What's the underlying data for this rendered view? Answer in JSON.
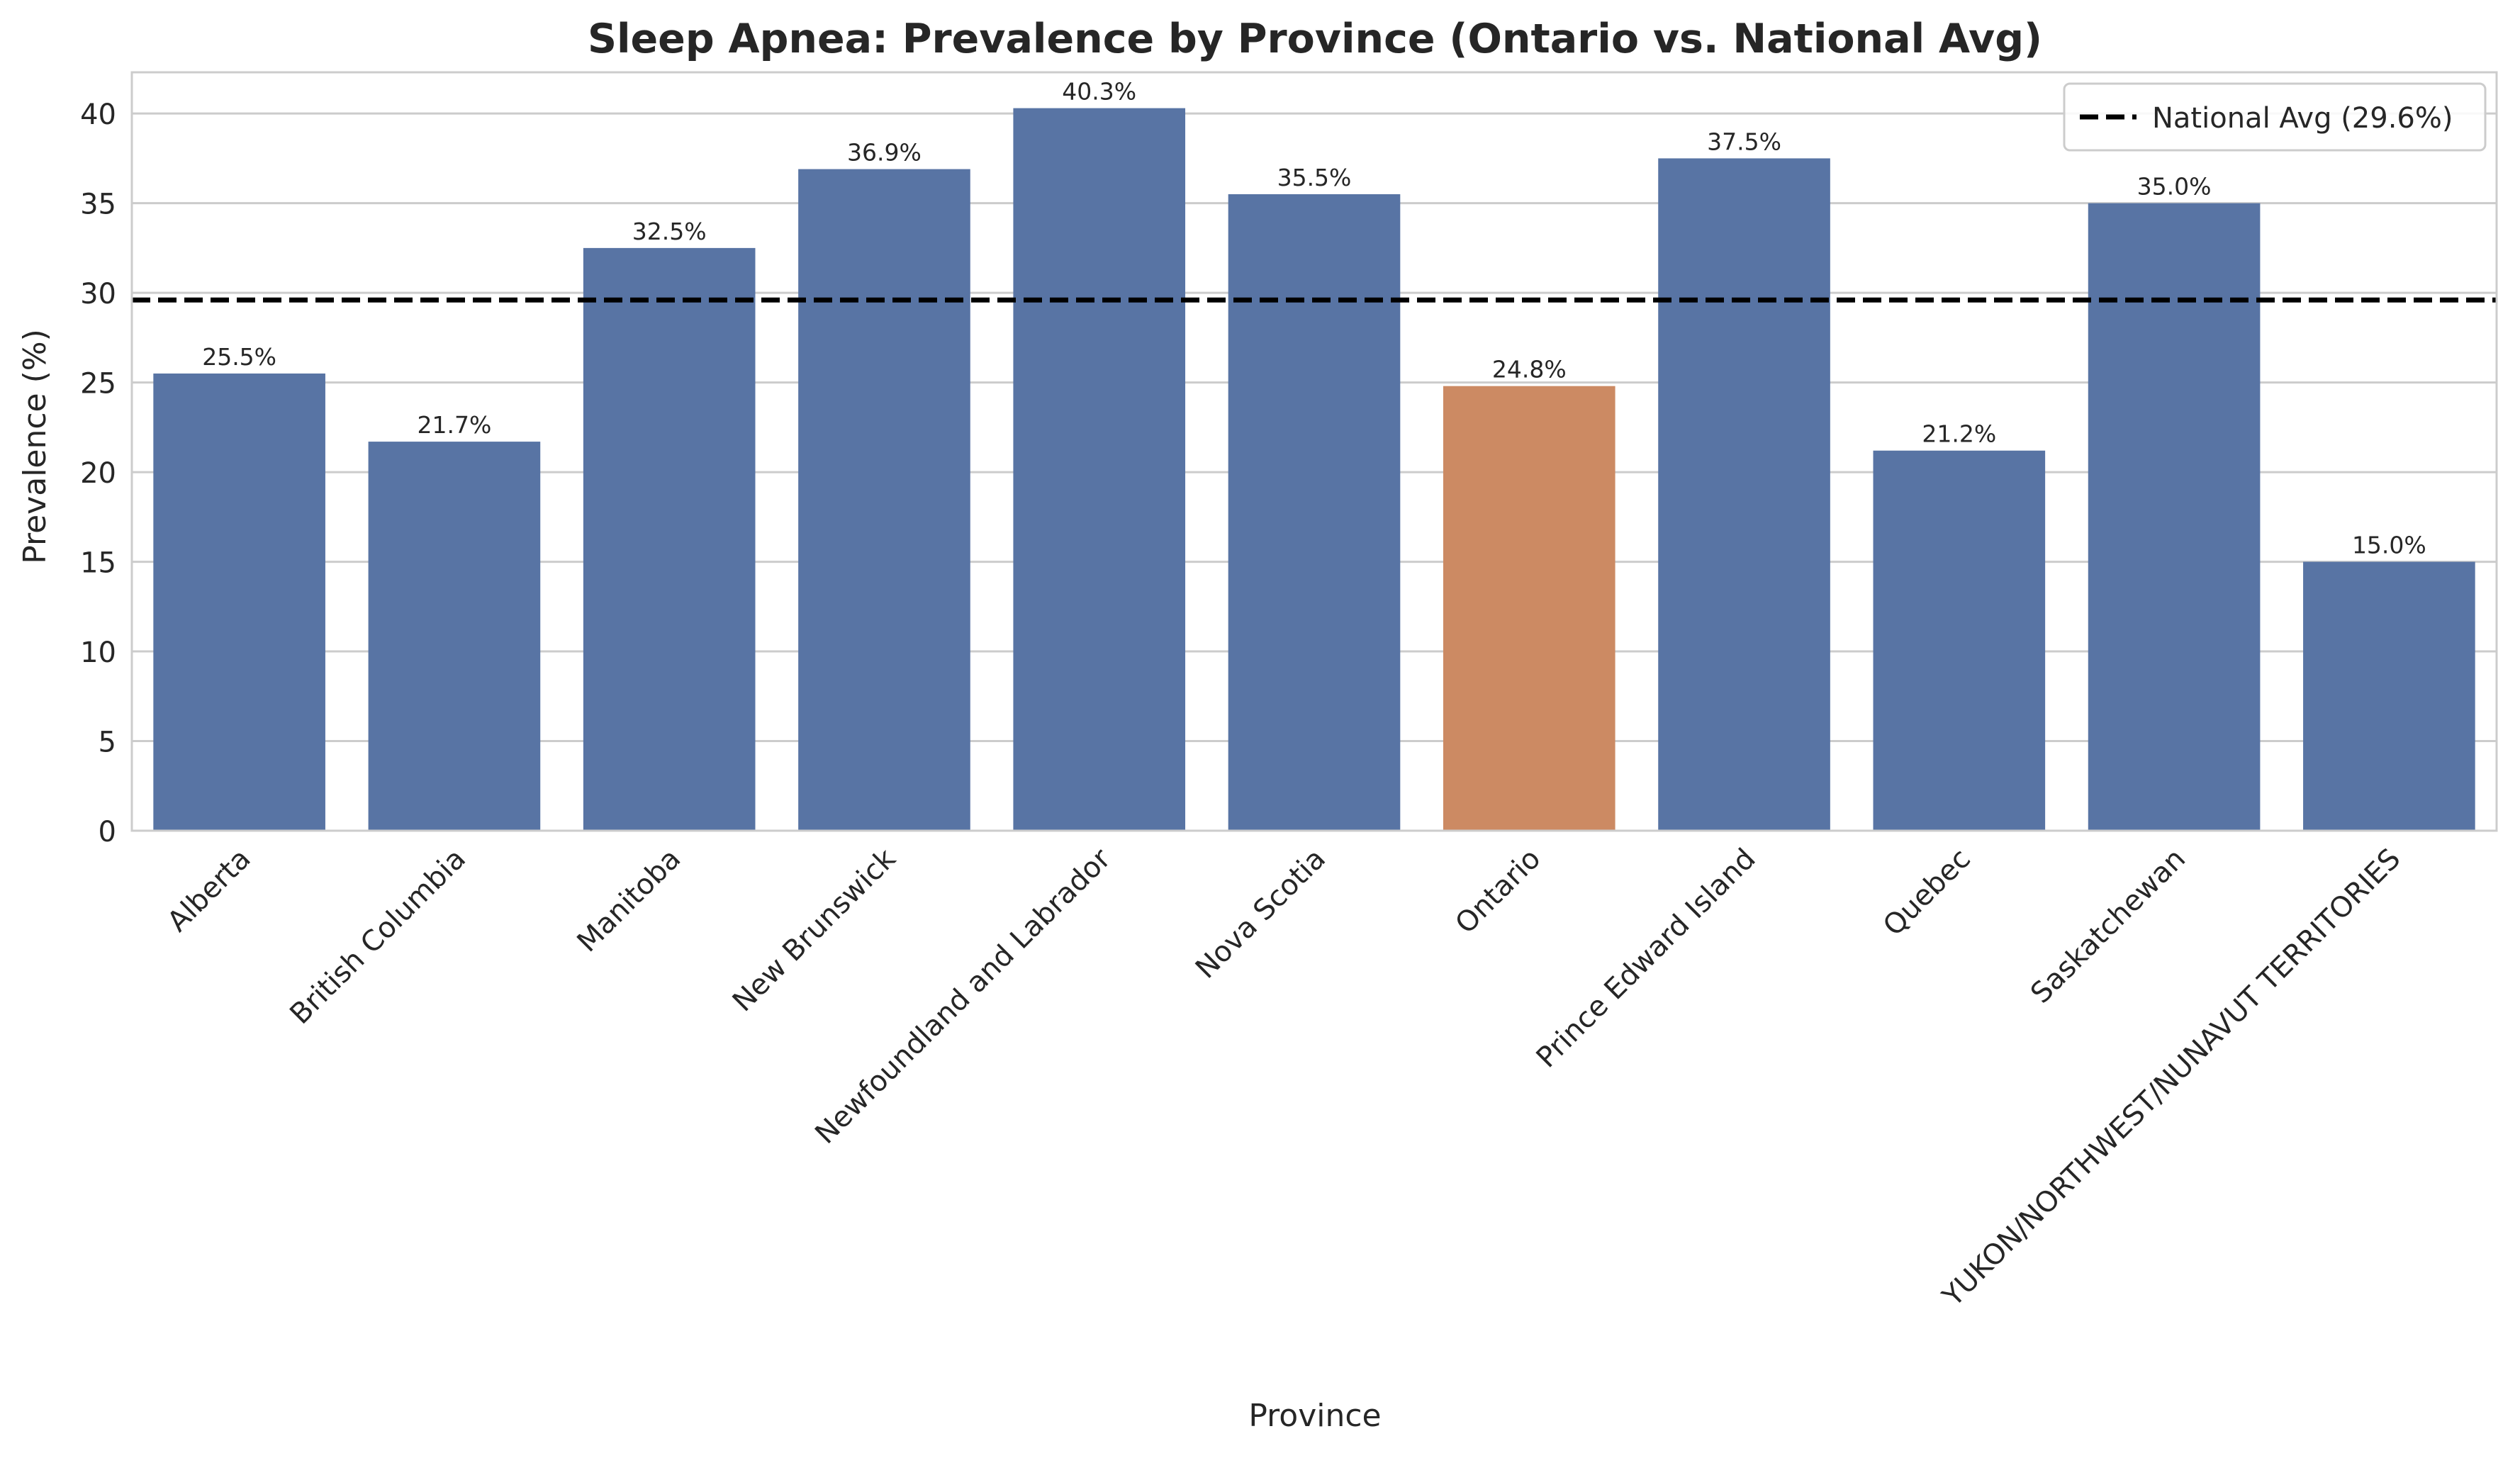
{
  "colors": {
    "bar_default": "#5874a4",
    "bar_highlight": "#cc8a63",
    "grid": "#cccccc",
    "axes_border": "#cccccc",
    "reference_line": "#000000",
    "text": "#262626"
  },
  "chart_data": {
    "type": "bar",
    "title": "Sleep Apnea: Prevalence by Province (Ontario vs. National Avg)",
    "xlabel": "Province",
    "ylabel": "Prevalence (%)",
    "ylim": [
      0,
      42.3
    ],
    "yticks": [
      0,
      5,
      10,
      15,
      20,
      25,
      30,
      35,
      40
    ],
    "grid": "horizontal",
    "legend_position": "top-right",
    "categories": [
      "Alberta",
      "British Columbia",
      "Manitoba",
      "New Brunswick",
      "Newfoundland and Labrador",
      "Nova Scotia",
      "Ontario",
      "Prince Edward Island",
      "Quebec",
      "Saskatchewan",
      "YUKON/NORTHWEST/NUNAVUT TERRITORIES"
    ],
    "values": [
      25.5,
      21.7,
      32.5,
      36.9,
      40.3,
      35.5,
      24.8,
      37.5,
      21.2,
      35.0,
      15.0
    ],
    "data_labels": [
      "25.5%",
      "21.7%",
      "32.5%",
      "36.9%",
      "40.3%",
      "35.5%",
      "24.8%",
      "37.5%",
      "21.2%",
      "35.0%",
      "15.0%"
    ],
    "highlight_category": "Ontario",
    "reference_line": {
      "value": 29.6,
      "label": "National Avg (29.6%)",
      "style": "dashed"
    }
  }
}
